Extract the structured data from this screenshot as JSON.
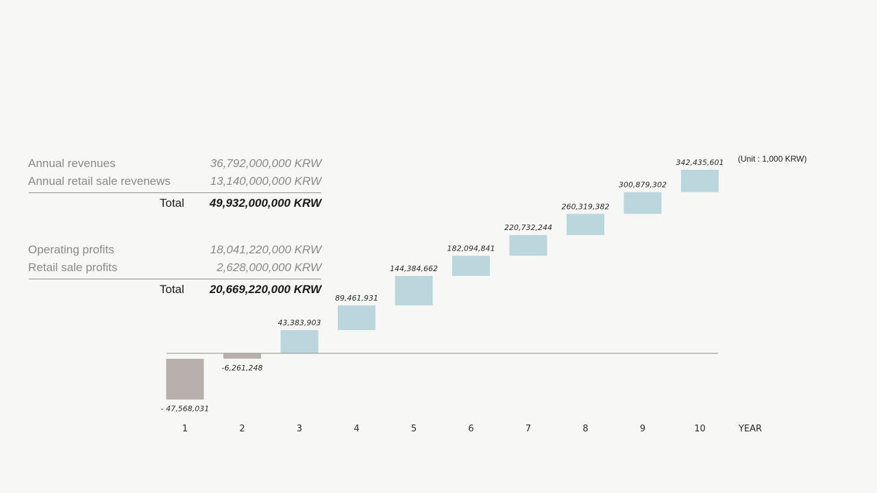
{
  "summary": {
    "revenues": {
      "rows": [
        {
          "label": "Annual revenues",
          "value": "36,792,000,000 KRW"
        },
        {
          "label": "Annual retail sale revenews",
          "value": "13,140,000,000 KRW"
        }
      ],
      "total_label": "Total",
      "total_value": "49,932,000,000 KRW"
    },
    "profits": {
      "rows": [
        {
          "label": "Operating profits",
          "value": "18,041,220,000 KRW"
        },
        {
          "label": "Retail sale profits",
          "value": "2,628,000,000 KRW"
        }
      ],
      "total_label": "Total",
      "total_value": "20,669,220,000 KRW"
    }
  },
  "chart_data": {
    "type": "bar",
    "subtype": "waterfall",
    "categories": [
      "1",
      "2",
      "3",
      "4",
      "5",
      "6",
      "7",
      "8",
      "9",
      "10"
    ],
    "values": [
      -47568031,
      -6261248,
      43383903,
      89461931,
      144384662,
      182094841,
      220732244,
      260319382,
      300879302,
      342435601
    ],
    "value_labels": [
      "- 47,568,031",
      "-6,261,248",
      "43,383,903",
      "89,461,931",
      "144,384,662",
      "182,094,841",
      "220,732,244",
      "260,319,382",
      "300,879,302",
      "342,435,601"
    ],
    "xlabel": "YEAR",
    "unit_note": "(Unit : 1,000 KRW)",
    "colors": {
      "positive": "#bcd6de",
      "negative": "#b8b0ad",
      "baseline": "#8f8f8f"
    }
  }
}
